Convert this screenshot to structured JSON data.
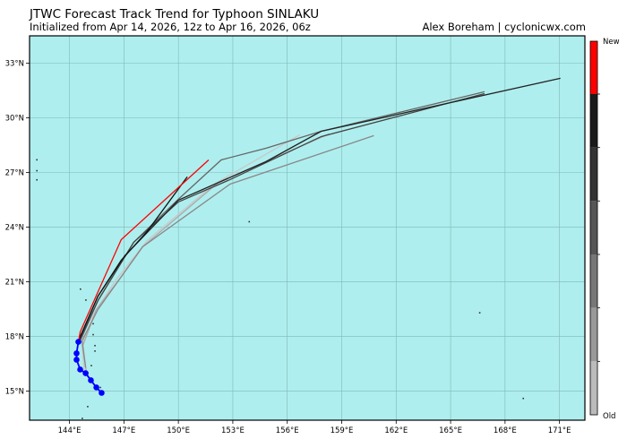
{
  "header": {
    "title": "JTWC Forecast Track Trend for Typhoon SINLAKU",
    "subtitle": "Initialized from Apr 14, 2026, 12z to Apr 16, 2026, 06z",
    "credit": "Alex Boreham | cyclonicwx.com"
  },
  "chart_data": {
    "type": "map-tracks",
    "ocean_color": "#afeeee",
    "lon_range": [
      141.8,
      172.4
    ],
    "lat_range": [
      13.4,
      34.5
    ],
    "grid": true,
    "lon_ticks": [
      144,
      147,
      150,
      153,
      156,
      159,
      162,
      165,
      168,
      171
    ],
    "lon_tick_labels": [
      "144°E",
      "147°E",
      "150°E",
      "153°E",
      "156°E",
      "159°E",
      "162°E",
      "165°E",
      "168°E",
      "171°E"
    ],
    "lat_ticks": [
      15,
      18,
      21,
      24,
      27,
      30,
      33
    ],
    "lat_tick_labels": [
      "15°N",
      "18°N",
      "21°N",
      "24°N",
      "27°N",
      "30°N",
      "33°N"
    ],
    "past_track_color": "#0000ff",
    "past_track": [
      [
        145.77,
        14.9
      ],
      [
        145.48,
        15.2
      ],
      [
        145.18,
        15.59
      ],
      [
        144.89,
        15.98
      ],
      [
        144.59,
        16.18
      ],
      [
        144.39,
        16.72
      ],
      [
        144.39,
        17.07
      ],
      [
        144.49,
        17.7
      ]
    ],
    "forecast_tracks": [
      {
        "color": "#c8c8c8",
        "points": [
          [
            144.84,
            15.89
          ],
          [
            144.69,
            17.51
          ],
          [
            145.33,
            19.23
          ],
          [
            146.56,
            21.1
          ],
          [
            148.28,
            23.26
          ],
          [
            151.97,
            26.36
          ],
          [
            156.69,
            29.07
          ]
        ]
      },
      {
        "color": "#aaaaaa",
        "points": [
          [
            144.93,
            16.03
          ],
          [
            144.74,
            17.51
          ],
          [
            145.48,
            19.48
          ],
          [
            146.8,
            21.2
          ],
          [
            148.03,
            22.92
          ],
          [
            152.21,
            26.46
          ],
          [
            158.31,
            29.12
          ]
        ]
      },
      {
        "color": "#888888",
        "points": [
          [
            144.89,
            16.28
          ],
          [
            144.69,
            17.75
          ],
          [
            145.57,
            19.48
          ],
          [
            148.03,
            22.92
          ],
          [
            152.85,
            26.36
          ],
          [
            160.77,
            29.02
          ]
        ]
      },
      {
        "color": "#666666",
        "points": [
          [
            144.59,
            17.75
          ],
          [
            145.57,
            19.97
          ],
          [
            147.54,
            23.17
          ],
          [
            150.0,
            25.53
          ],
          [
            152.36,
            27.69
          ],
          [
            154.82,
            28.33
          ],
          [
            157.87,
            29.26
          ],
          [
            166.87,
            31.43
          ]
        ]
      },
      {
        "color": "#444444",
        "points": [
          [
            144.54,
            17.75
          ],
          [
            145.57,
            19.97
          ],
          [
            147.54,
            23.17
          ],
          [
            150.0,
            25.38
          ],
          [
            152.85,
            26.61
          ],
          [
            157.87,
            28.97
          ],
          [
            166.87,
            31.33
          ]
        ]
      },
      {
        "color": "#222222",
        "points": [
          [
            144.49,
            17.75
          ],
          [
            145.57,
            20.21
          ],
          [
            147.05,
            22.43
          ],
          [
            150.0,
            25.48
          ],
          [
            154.82,
            27.59
          ],
          [
            157.87,
            29.26
          ],
          [
            171.05,
            32.17
          ]
        ]
      },
      {
        "color": "#111111",
        "points": [
          [
            144.49,
            17.75
          ],
          [
            145.57,
            20.21
          ],
          [
            146.85,
            22.18
          ],
          [
            148.28,
            23.76
          ],
          [
            150.49,
            26.76
          ]
        ]
      },
      {
        "color": "#ff0000",
        "points": [
          [
            144.49,
            17.7
          ],
          [
            144.59,
            18.25
          ],
          [
            146.85,
            23.31
          ],
          [
            151.67,
            27.69
          ]
        ]
      }
    ],
    "islands": [
      [
        142.2,
        27.7
      ],
      [
        142.2,
        27.1
      ],
      [
        142.2,
        26.6
      ],
      [
        144.6,
        20.6
      ],
      [
        144.9,
        20.0
      ],
      [
        145.3,
        18.7
      ],
      [
        145.3,
        18.1
      ],
      [
        145.4,
        17.5
      ],
      [
        145.4,
        17.2
      ],
      [
        145.2,
        16.4
      ],
      [
        145.7,
        15.2
      ],
      [
        145.0,
        14.15
      ],
      [
        144.7,
        13.5
      ],
      [
        153.9,
        24.3
      ],
      [
        166.6,
        19.3
      ],
      [
        169.0,
        14.6
      ]
    ],
    "colorbar": {
      "top_label": "New",
      "bottom_label": "Old",
      "colors_new_to_old": [
        "#ff0000",
        "#1a1a1a",
        "#333333",
        "#555555",
        "#777777",
        "#999999",
        "#bbbbbb"
      ]
    }
  }
}
